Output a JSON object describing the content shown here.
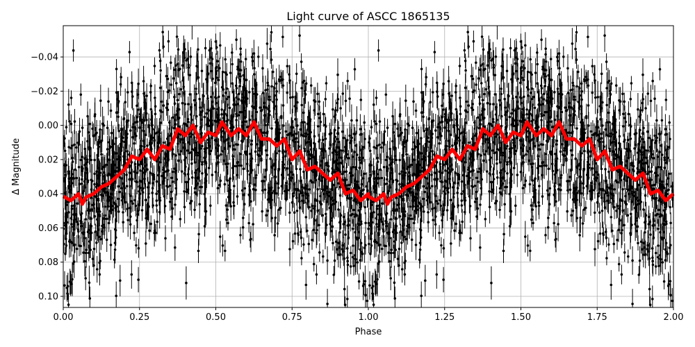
{
  "chart_data": {
    "type": "scatter",
    "title": "Light curve of ASCC 1865135",
    "xlabel": "Phase",
    "ylabel": "Δ Magnitude",
    "xlim": [
      0.0,
      2.0
    ],
    "ylim": [
      0.1065,
      -0.0583
    ],
    "y_inverted": true,
    "grid": true,
    "xticks": [
      "0.00",
      "0.25",
      "0.50",
      "0.75",
      "1.00",
      "1.25",
      "1.50",
      "1.75",
      "2.00"
    ],
    "yticks": [
      "−0.04",
      "−0.02",
      "0.00",
      "0.02",
      "0.04",
      "0.06",
      "0.08",
      "0.10"
    ],
    "points_color": "#000000",
    "binned_curve": {
      "color": "#ff0000",
      "period_repeat": true,
      "phase": [
        0,
        0.025,
        0.05,
        0.0625,
        0.075,
        0.1,
        0.125,
        0.15,
        0.175,
        0.2,
        0.225,
        0.25,
        0.275,
        0.3,
        0.325,
        0.35,
        0.375,
        0.4,
        0.425,
        0.45,
        0.475,
        0.5,
        0.52,
        0.55,
        0.575,
        0.6,
        0.625,
        0.65,
        0.675,
        0.7,
        0.725,
        0.75,
        0.775,
        0.8,
        0.825,
        0.85,
        0.875,
        0.9,
        0.925,
        0.95,
        0.975,
        1.0
      ],
      "mag": [
        0.0415,
        0.044,
        0.04,
        0.046,
        0.042,
        0.04,
        0.036,
        0.034,
        0.03,
        0.026,
        0.018,
        0.02,
        0.014,
        0.02,
        0.012,
        0.014,
        0.002,
        0.006,
        0.0,
        0.01,
        0.004,
        0.006,
        -0.002,
        0.006,
        0.002,
        0.006,
        -0.002,
        0.008,
        0.008,
        0.012,
        0.008,
        0.02,
        0.015,
        0.026,
        0.024,
        0.028,
        0.032,
        0.028,
        0.04,
        0.038,
        0.044,
        0.04
      ]
    }
  }
}
